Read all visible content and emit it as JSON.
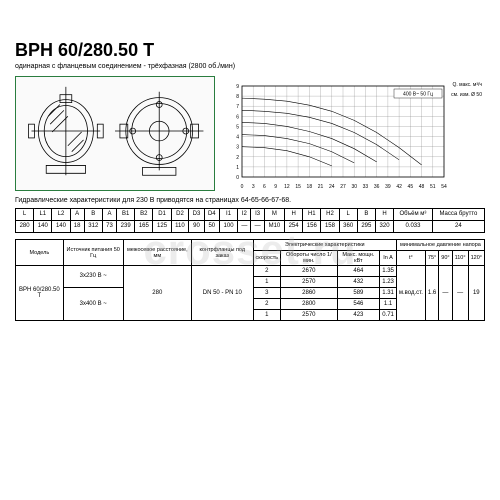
{
  "header": {
    "title": "BPH 60/280.50 T",
    "subtitle": "одинарная с фланцевым соединением - трёхфазная (2800 об./мин)"
  },
  "watermark": "crosset.ru",
  "chart": {
    "type": "line",
    "xlim": [
      0,
      54
    ],
    "ylim": [
      0,
      9
    ],
    "xtick_step": 3,
    "ytick_step": 1,
    "right_label_top": "Q. макс. м³/ч",
    "right_label_mid": "см. изм. Ø 50",
    "badge": "400 В~ 50 Гц",
    "grid_color": "#888",
    "curve_color": "#000",
    "line_width": 0.6,
    "curves": [
      [
        [
          0,
          7.8
        ],
        [
          6,
          7.7
        ],
        [
          12,
          7.5
        ],
        [
          18,
          7.1
        ],
        [
          24,
          6.5
        ],
        [
          30,
          5.6
        ],
        [
          36,
          4.4
        ],
        [
          42,
          2.9
        ],
        [
          48,
          1.2
        ]
      ],
      [
        [
          0,
          6.6
        ],
        [
          6,
          6.5
        ],
        [
          12,
          6.3
        ],
        [
          18,
          5.9
        ],
        [
          24,
          5.3
        ],
        [
          30,
          4.4
        ],
        [
          36,
          3.2
        ],
        [
          42,
          1.7
        ]
      ],
      [
        [
          0,
          5.4
        ],
        [
          6,
          5.3
        ],
        [
          12,
          5.0
        ],
        [
          18,
          4.5
        ],
        [
          24,
          3.8
        ],
        [
          30,
          2.8
        ],
        [
          36,
          1.5
        ]
      ],
      [
        [
          0,
          4.2
        ],
        [
          6,
          4.1
        ],
        [
          12,
          3.8
        ],
        [
          18,
          3.3
        ],
        [
          24,
          2.5
        ],
        [
          30,
          1.4
        ]
      ],
      [
        [
          0,
          3.0
        ],
        [
          6,
          2.9
        ],
        [
          12,
          2.6
        ],
        [
          18,
          2.0
        ],
        [
          24,
          1.1
        ]
      ]
    ],
    "xticks": [
      0,
      3,
      6,
      9,
      12,
      15,
      18,
      21,
      24,
      27,
      30,
      33,
      36,
      39,
      42,
      45,
      48,
      51,
      54
    ]
  },
  "note": "Гидравлические характеристики для 230 В приводятся на страницах 64-65-66-67-68.",
  "dim_table": {
    "headers": [
      "L",
      "L1",
      "L2",
      "A",
      "B",
      "A",
      "B1",
      "B2",
      "D1",
      "D2",
      "D3",
      "D4",
      "I1",
      "I2",
      "I3",
      "M",
      "H",
      "H1",
      "H2",
      "Размеры упаковки",
      "",
      "",
      "Объём м³",
      "Масса брутто"
    ],
    "sub_headers_pack": [
      "L",
      "B",
      "H"
    ],
    "row": [
      "280",
      "140",
      "140",
      "18",
      "312",
      "73",
      "239",
      "165",
      "125",
      "110",
      "90",
      "50",
      "100",
      "—",
      "—",
      "M10",
      "254",
      "156",
      "158",
      "360",
      "295",
      "320",
      "0.033",
      "24"
    ]
  },
  "spec_table": {
    "col_headers": {
      "model": "Модель",
      "power": "Источник питания 50 Гц",
      "dist": "межосевое расстояние, мм",
      "flange": "контрфланцы под заказ",
      "elec": "Электрические характеристики",
      "speed": "скорость",
      "rpm": "Обороты число 1/мин.",
      "pmax": "Макс. мощн. кВт",
      "in": "In A",
      "min_press": "минимальное давление напора"
    },
    "model": "BPH 60/280.50 T",
    "power_options": [
      "3x230 В ~",
      "3x400 В ~"
    ],
    "dist": "280",
    "flange": "DN 50 - PN 10",
    "rows": [
      {
        "spd": "2",
        "rpm": "2670",
        "p": "464",
        "in": "1.35"
      },
      {
        "spd": "1",
        "rpm": "2570",
        "p": "432",
        "in": "1.23"
      },
      {
        "spd": "3",
        "rpm": "2860",
        "p": "589",
        "in": "1.31"
      },
      {
        "spd": "2",
        "rpm": "2800",
        "p": "546",
        "in": "1.1"
      },
      {
        "spd": "1",
        "rpm": "2570",
        "p": "423",
        "in": "0.71"
      }
    ],
    "press_header": [
      "t°",
      "75°",
      "90°",
      "110°",
      "120°"
    ],
    "press_row": [
      "м.вод.ст.",
      "1.6",
      "—",
      "—",
      "19"
    ]
  },
  "colors": {
    "drawing_border": "#2a7d3f",
    "bg": "#ffffff"
  }
}
